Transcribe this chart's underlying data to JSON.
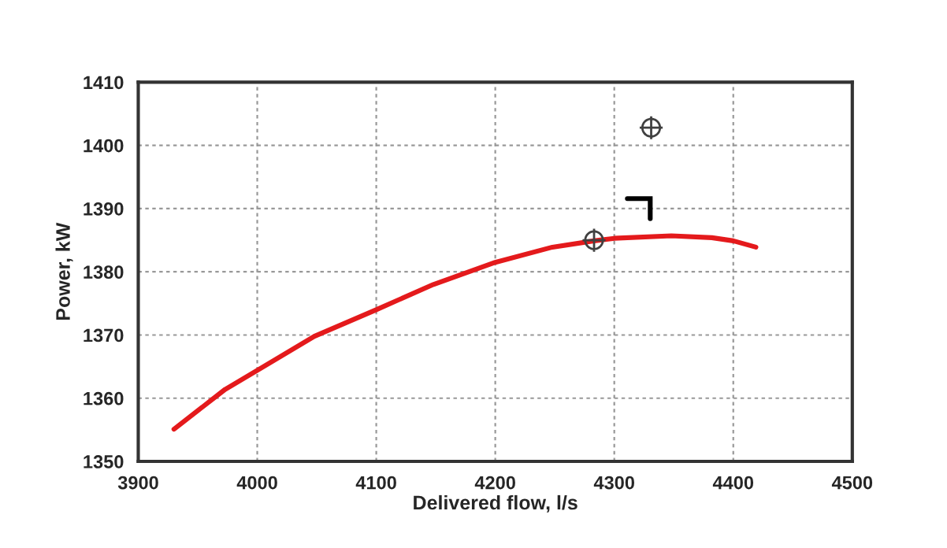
{
  "chart_data": {
    "type": "line",
    "xlabel": "Delivered flow, l/s",
    "ylabel": "Power, kW",
    "series": [
      {
        "color": "#e41a1c",
        "x": [
          3930,
          3973,
          4000,
          4048,
          4100,
          4148,
          4200,
          4248,
          4283,
          4300,
          4348,
          4382,
          4400,
          4419
        ],
        "values": [
          1355.1,
          1361.4,
          1364.4,
          1369.8,
          1374.0,
          1378.0,
          1381.5,
          1383.9,
          1384.9,
          1385.3,
          1385.7,
          1385.4,
          1384.9,
          1383.9
        ]
      },
      {
        "type": "scatter",
        "color": "#404040",
        "marker": "cross",
        "x": [
          4283,
          4331
        ],
        "values": [
          1385,
          1402.8
        ]
      }
    ],
    "xlim": [
      3900,
      4500
    ],
    "xticks": [
      3900,
      4000,
      4100,
      4200,
      4300,
      4400,
      4500
    ],
    "ylim": [
      1350,
      1410
    ],
    "yticks": [
      1350,
      1360,
      1370,
      1380,
      1390,
      1400,
      1410
    ],
    "grid": true
  }
}
